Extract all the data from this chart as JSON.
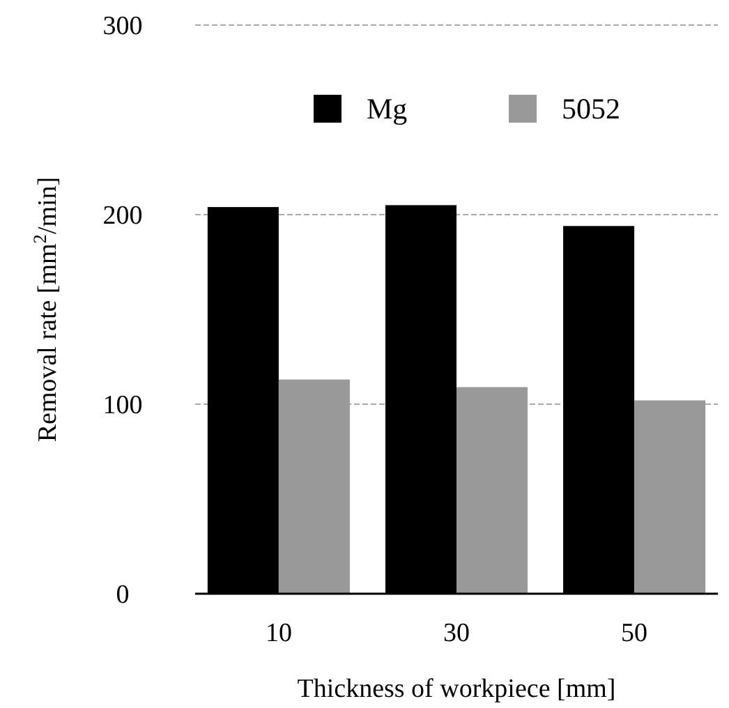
{
  "chart_data": {
    "type": "bar",
    "xlabel": "Thickness of workpiece  [mm]",
    "ylabel": "Removal rate  [mm$^{2}$/min]",
    "categories": [
      "10",
      "30",
      "50"
    ],
    "series": [
      {
        "name": "Mg",
        "color": "#000000",
        "values": [
          204,
          205,
          194
        ]
      },
      {
        "name": "5052",
        "color": "#999999",
        "values": [
          113,
          109,
          102
        ]
      }
    ],
    "ylim": [
      0,
      300
    ],
    "yticks": [
      0,
      100,
      200,
      300
    ],
    "grid": "y",
    "legend": "top"
  }
}
